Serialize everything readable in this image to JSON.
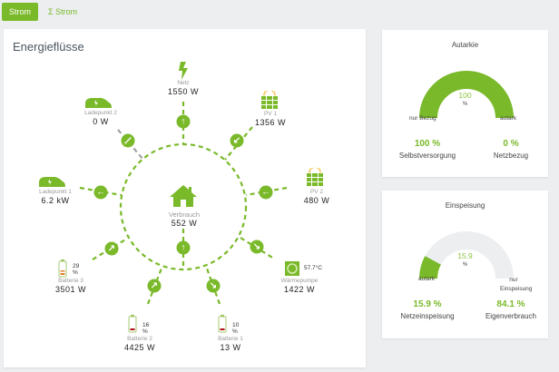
{
  "tabs": [
    {
      "label": "Strom",
      "active": true
    },
    {
      "label": "Σ Strom",
      "active": false
    }
  ],
  "flow": {
    "title": "Energieflüsse",
    "colors": {
      "accent": "#7ab929",
      "inactive": "#a0a0a0"
    },
    "nodes": {
      "netz": {
        "label": "Netz",
        "value": "1550 W"
      },
      "ladepunkt2": {
        "label": "Ladepunkt 2",
        "value": "0 W"
      },
      "pv1": {
        "label": "PV 1",
        "value": "1356 W"
      },
      "ladepunkt1": {
        "label": "Ladepunkt 1",
        "value": "6.2 kW"
      },
      "pv2": {
        "label": "PV 2",
        "value": "480 W"
      },
      "verbrauch": {
        "label": "Verbrauch",
        "value": "552 W"
      },
      "batterie3": {
        "label": "Batterie 3",
        "value": "3501 W",
        "soc": "29 %"
      },
      "waermepumpe": {
        "label": "Wärmepumpe",
        "value": "1422 W",
        "temp": "57.7°C"
      },
      "batterie2": {
        "label": "Batterie 2",
        "value": "4425 W",
        "soc": "16 %"
      },
      "batterie1": {
        "label": "Batterie 1",
        "value": "13 W",
        "soc": "10 %"
      }
    }
  },
  "autarkie": {
    "title": "Autarkie",
    "value": "100",
    "unit": "%",
    "percent": 100,
    "left": "nur Bezug",
    "right": "autark",
    "stats": [
      {
        "value": "100 %",
        "label": "Selbstversorgung"
      },
      {
        "value": "0 %",
        "label": "Netzbezug"
      }
    ]
  },
  "einspeisung": {
    "title": "Einspeisung",
    "value": "15.9",
    "unit": "%",
    "percent": 15.9,
    "left": "autark",
    "right": "nur Einspeisung",
    "stats": [
      {
        "value": "15.9 %",
        "label": "Netzeinspeisung"
      },
      {
        "value": "84.1 %",
        "label": "Eigenverbrauch"
      }
    ]
  }
}
